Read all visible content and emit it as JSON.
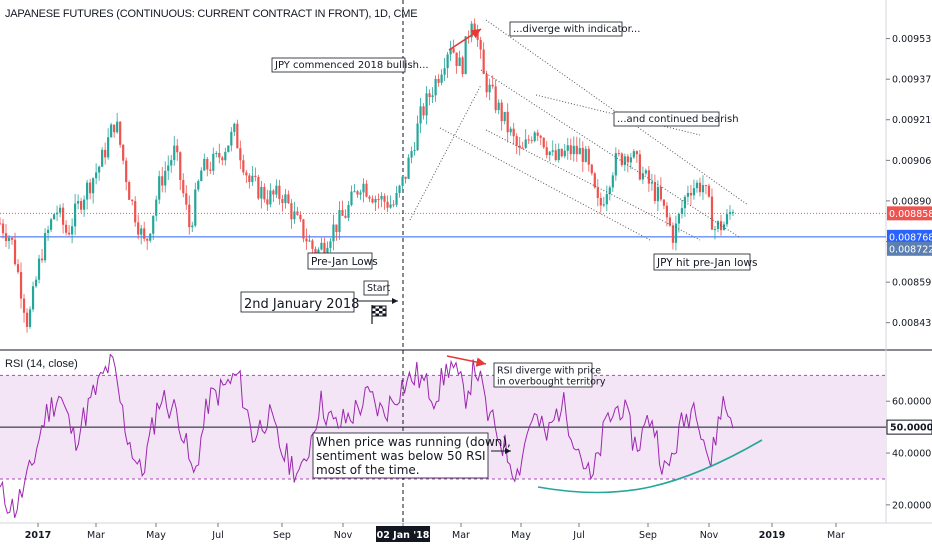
{
  "chart_data": [
    {
      "type": "candlestick",
      "title": "JAPANESE FUTURES (CONTINUOUS: CURRENT CONTRACT IN FRONT), 1D, CME",
      "x_ticks": [
        "2017",
        "Mar",
        "May",
        "Jul",
        "Sep",
        "Nov",
        "02 Jan '18",
        "Mar",
        "May",
        "Jul",
        "Sep",
        "Nov",
        "2019",
        "Mar"
      ],
      "y_ticks": [
        0.0095315,
        0.009375,
        0.009219,
        0.0090625,
        0.0089065,
        0.00875,
        0.0085935,
        0.0084375
      ],
      "y_tick_labels": [
        "0.0095315",
        "0.0093750",
        "0.0092190",
        "0.0090625",
        "0.0089065",
        "",
        "0.0085935",
        "0.0084375"
      ],
      "ylim": [
        0.00834,
        0.00968
      ],
      "price_path": [
        {
          "x": 0.0,
          "y": 0.00882
        },
        {
          "x": 0.3,
          "y": 0.00876
        },
        {
          "x": 0.55,
          "y": 0.00858
        },
        {
          "x": 0.75,
          "y": 0.00843
        },
        {
          "x": 1.1,
          "y": 0.0087
        },
        {
          "x": 1.5,
          "y": 0.00888
        },
        {
          "x": 1.8,
          "y": 0.00878
        },
        {
          "x": 2.2,
          "y": 0.00892
        },
        {
          "x": 2.7,
          "y": 0.00905
        },
        {
          "x": 3.1,
          "y": 0.00922
        },
        {
          "x": 3.5,
          "y": 0.00892
        },
        {
          "x": 3.9,
          "y": 0.00873
        },
        {
          "x": 4.3,
          "y": 0.00898
        },
        {
          "x": 4.7,
          "y": 0.0091
        },
        {
          "x": 5.1,
          "y": 0.0088
        },
        {
          "x": 5.4,
          "y": 0.00902
        },
        {
          "x": 5.8,
          "y": 0.00906
        },
        {
          "x": 6.3,
          "y": 0.00917
        },
        {
          "x": 6.7,
          "y": 0.00898
        },
        {
          "x": 7.2,
          "y": 0.00892
        },
        {
          "x": 7.6,
          "y": 0.00893
        },
        {
          "x": 8.0,
          "y": 0.00882
        },
        {
          "x": 8.5,
          "y": 0.0087
        },
        {
          "x": 8.9,
          "y": 0.00879
        },
        {
          "x": 9.3,
          "y": 0.00886
        },
        {
          "x": 9.7,
          "y": 0.00898
        },
        {
          "x": 10.1,
          "y": 0.00892
        },
        {
          "x": 10.6,
          "y": 0.00889
        },
        {
          "x": 10.9,
          "y": 0.00901
        },
        {
          "x": 11.3,
          "y": 0.00923
        },
        {
          "x": 11.8,
          "y": 0.0094
        },
        {
          "x": 12.1,
          "y": 0.00952
        },
        {
          "x": 12.4,
          "y": 0.00941
        },
        {
          "x": 12.7,
          "y": 0.00964
        },
        {
          "x": 13.0,
          "y": 0.00938
        },
        {
          "x": 13.5,
          "y": 0.00923
        },
        {
          "x": 14.0,
          "y": 0.00908
        },
        {
          "x": 14.4,
          "y": 0.0092
        },
        {
          "x": 14.9,
          "y": 0.00906
        },
        {
          "x": 15.3,
          "y": 0.0091
        },
        {
          "x": 15.7,
          "y": 0.00909
        },
        {
          "x": 16.1,
          "y": 0.00887
        },
        {
          "x": 16.5,
          "y": 0.00905
        },
        {
          "x": 16.9,
          "y": 0.0091
        },
        {
          "x": 17.3,
          "y": 0.009
        },
        {
          "x": 17.7,
          "y": 0.00892
        },
        {
          "x": 18.1,
          "y": 0.00877
        },
        {
          "x": 18.5,
          "y": 0.00896
        },
        {
          "x": 18.9,
          "y": 0.00897
        },
        {
          "x": 19.2,
          "y": 0.0088
        },
        {
          "x": 19.5,
          "y": 0.00882
        },
        {
          "x": 19.7,
          "y": 0.008886
        }
      ],
      "x_index_range": [
        0,
        19.7
      ],
      "price_lines": [
        {
          "name": "last",
          "value": 0.0088585,
          "label": "0.0088585",
          "color": "#ef5350",
          "style": "dotted"
        },
        {
          "name": "support",
          "value": 0.008768,
          "label": "0.0087680",
          "color": "#2962ff",
          "style": "solid"
        }
      ],
      "extra_label": {
        "value": 0.008722,
        "label": "0.0087220",
        "color": "#5b7fb0"
      },
      "event_line_label": "02 Jan '18",
      "annotations": [
        "...diverge with indicator...",
        "JPY commenced 2018 bullish...",
        "...and continued bearish",
        "Pre-Jan Lows",
        "JPY hit pre-Jan lows",
        "2nd January 2018",
        "Start"
      ],
      "candle_colors": {
        "up": "#26a69a",
        "down": "#ef5350"
      }
    },
    {
      "type": "line",
      "title": "RSI (14, close)",
      "y_ticks": [
        60,
        40,
        20
      ],
      "y_tick_labels": [
        "60.0000",
        "40.0000",
        "20.0000"
      ],
      "ylim": [
        13,
        79
      ],
      "highlight": {
        "value": 50,
        "label": "50.0000"
      },
      "band": [
        30,
        70
      ],
      "rsi_path": [
        {
          "x": 0.0,
          "y": 25
        },
        {
          "x": 0.4,
          "y": 18
        },
        {
          "x": 0.8,
          "y": 32
        },
        {
          "x": 1.2,
          "y": 54
        },
        {
          "x": 1.6,
          "y": 63
        },
        {
          "x": 2.0,
          "y": 45
        },
        {
          "x": 2.5,
          "y": 62
        },
        {
          "x": 3.0,
          "y": 76
        },
        {
          "x": 3.4,
          "y": 48
        },
        {
          "x": 3.8,
          "y": 31
        },
        {
          "x": 4.3,
          "y": 62
        },
        {
          "x": 4.8,
          "y": 55
        },
        {
          "x": 5.2,
          "y": 30
        },
        {
          "x": 5.6,
          "y": 60
        },
        {
          "x": 6.0,
          "y": 65
        },
        {
          "x": 6.4,
          "y": 70
        },
        {
          "x": 6.8,
          "y": 46
        },
        {
          "x": 7.2,
          "y": 55
        },
        {
          "x": 7.6,
          "y": 40
        },
        {
          "x": 8.1,
          "y": 31
        },
        {
          "x": 8.6,
          "y": 60
        },
        {
          "x": 9.0,
          "y": 50
        },
        {
          "x": 9.4,
          "y": 54
        },
        {
          "x": 9.9,
          "y": 62
        },
        {
          "x": 10.3,
          "y": 55
        },
        {
          "x": 10.8,
          "y": 66
        },
        {
          "x": 11.2,
          "y": 70
        },
        {
          "x": 11.7,
          "y": 62
        },
        {
          "x": 12.1,
          "y": 75
        },
        {
          "x": 12.5,
          "y": 62
        },
        {
          "x": 12.8,
          "y": 74
        },
        {
          "x": 13.1,
          "y": 55
        },
        {
          "x": 13.5,
          "y": 44
        },
        {
          "x": 13.9,
          "y": 32
        },
        {
          "x": 14.3,
          "y": 55
        },
        {
          "x": 14.7,
          "y": 46
        },
        {
          "x": 15.1,
          "y": 60
        },
        {
          "x": 15.5,
          "y": 44
        },
        {
          "x": 15.9,
          "y": 28
        },
        {
          "x": 16.3,
          "y": 52
        },
        {
          "x": 16.7,
          "y": 59
        },
        {
          "x": 17.1,
          "y": 42
        },
        {
          "x": 17.5,
          "y": 55
        },
        {
          "x": 17.9,
          "y": 31
        },
        {
          "x": 18.3,
          "y": 50
        },
        {
          "x": 18.7,
          "y": 60
        },
        {
          "x": 19.1,
          "y": 35
        },
        {
          "x": 19.4,
          "y": 60
        },
        {
          "x": 19.7,
          "y": 52
        }
      ],
      "annotations": [
        "RSI diverge with price\nin overbought territory",
        "When price was running (down),\nsentiment was below 50 RSI\nmost of the time."
      ]
    }
  ],
  "colors": {
    "rsi_line": "#9c27b0",
    "rsi_band": "#f3e5f5",
    "rsi_bounds": "#ab47bc",
    "arrow_red": "#e53935",
    "curve": "#26a69a",
    "axis_text": "#131722"
  }
}
